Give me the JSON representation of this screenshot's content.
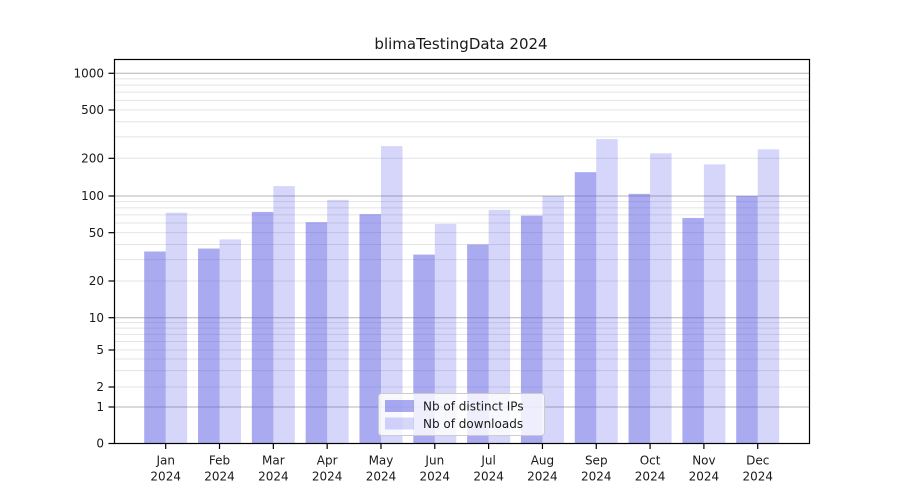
{
  "chart_data": {
    "type": "bar",
    "title": "blimaTestingData 2024",
    "xlabel": "",
    "ylabel": "",
    "year": "2024",
    "months": [
      "Jan",
      "Feb",
      "Mar",
      "Apr",
      "May",
      "Jun",
      "Jul",
      "Aug",
      "Sep",
      "Oct",
      "Nov",
      "Dec"
    ],
    "series": [
      {
        "name": "Nb of distinct IPs",
        "color": "rgba(85,85,225,0.5)",
        "values": [
          35,
          37,
          74,
          61,
          71,
          33,
          40,
          69,
          155,
          104,
          66,
          100
        ]
      },
      {
        "name": "Nb of downloads",
        "color": "rgba(50,50,230,0.2)",
        "values": [
          73,
          44,
          120,
          93,
          252,
          59,
          77,
          100,
          288,
          220,
          179,
          237
        ]
      }
    ],
    "y_axis": {
      "scale": "log-like",
      "tick_labels": [
        "0",
        "1",
        "2",
        "5",
        "10",
        "20",
        "50",
        "100",
        "200",
        "500",
        "1000"
      ],
      "ylim": [
        0,
        1300
      ],
      "grid": "major+minor",
      "major_grid_values": [
        1,
        10,
        100,
        1000
      ]
    },
    "legend": {
      "position": "lower-center",
      "items": [
        "Nb of distinct IPs",
        "Nb of downloads"
      ]
    }
  }
}
